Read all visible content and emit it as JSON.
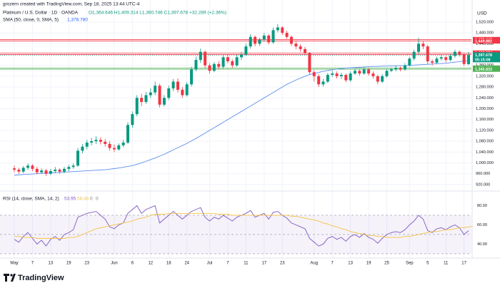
{
  "credit": "grozern created with TradingView.com, Sep 18, 2025 13:44 UTC-4",
  "logo": "TradingView",
  "chart_data": {
    "type": "candlestick",
    "title": "Platinum / U.S. Dollar · 1D · OANDA",
    "ohlc_legend": "O1,364.646 H1,409.314 L1,360.746 C1,397.678 +32.289 (+2.36%)",
    "currency": "USD",
    "up_color": "#089981",
    "down_color": "#f23645",
    "grid": true,
    "categories": [
      "May",
      null,
      null,
      null,
      "7",
      null,
      null,
      null,
      "13",
      null,
      null,
      null,
      "19",
      null,
      null,
      null,
      "23",
      null,
      null,
      null,
      null,
      null,
      "Jun",
      null,
      null,
      null,
      "6",
      null,
      null,
      null,
      "12",
      null,
      null,
      null,
      "18",
      null,
      null,
      null,
      "24",
      null,
      null,
      null,
      null,
      "Jul",
      null,
      null,
      null,
      "7",
      null,
      null,
      null,
      "11",
      null,
      null,
      null,
      "17",
      null,
      null,
      null,
      "23",
      null,
      null,
      null,
      null,
      null,
      null,
      "Aug",
      null,
      null,
      null,
      "7",
      null,
      null,
      null,
      "13",
      null,
      null,
      null,
      "19",
      null,
      null,
      null,
      "25",
      null,
      null,
      null,
      null,
      "Sep",
      null,
      null,
      null,
      "5",
      null,
      null,
      null,
      "11",
      null,
      null,
      null,
      "17",
      null
    ],
    "candles": [
      [
        980,
        990,
        965,
        975
      ],
      [
        975,
        982,
        960,
        968
      ],
      [
        968,
        988,
        962,
        982
      ],
      [
        982,
        998,
        975,
        990
      ],
      [
        990,
        995,
        970,
        978
      ],
      [
        978,
        985,
        958,
        965
      ],
      [
        965,
        980,
        960,
        972
      ],
      [
        972,
        978,
        952,
        960
      ],
      [
        960,
        978,
        955,
        970
      ],
      [
        970,
        985,
        962,
        975
      ],
      [
        975,
        980,
        960,
        968
      ],
      [
        968,
        985,
        962,
        978
      ],
      [
        978,
        992,
        970,
        985
      ],
      [
        985,
        998,
        978,
        990
      ],
      [
        990,
        1055,
        985,
        1045
      ],
      [
        1045,
        1070,
        1035,
        1060
      ],
      [
        1060,
        1085,
        1050,
        1075
      ],
      [
        1075,
        1092,
        1065,
        1080
      ],
      [
        1080,
        1098,
        1070,
        1085
      ],
      [
        1085,
        1095,
        1068,
        1078
      ],
      [
        1078,
        1088,
        1060,
        1070
      ],
      [
        1070,
        1080,
        1045,
        1055
      ],
      [
        1055,
        1068,
        1040,
        1050
      ],
      [
        1050,
        1072,
        1045,
        1065
      ],
      [
        1065,
        1085,
        1058,
        1075
      ],
      [
        1075,
        1150,
        1070,
        1140
      ],
      [
        1140,
        1190,
        1130,
        1180
      ],
      [
        1180,
        1250,
        1172,
        1240
      ],
      [
        1240,
        1255,
        1210,
        1225
      ],
      [
        1225,
        1262,
        1218,
        1250
      ],
      [
        1250,
        1275,
        1240,
        1260
      ],
      [
        1260,
        1300,
        1250,
        1285
      ],
      [
        1285,
        1292,
        1205,
        1215
      ],
      [
        1215,
        1250,
        1208,
        1240
      ],
      [
        1240,
        1285,
        1232,
        1275
      ],
      [
        1275,
        1310,
        1265,
        1300
      ],
      [
        1300,
        1312,
        1260,
        1270
      ],
      [
        1270,
        1280,
        1240,
        1250
      ],
      [
        1250,
        1298,
        1245,
        1290
      ],
      [
        1290,
        1355,
        1282,
        1345
      ],
      [
        1345,
        1392,
        1338,
        1380
      ],
      [
        1380,
        1422,
        1370,
        1410
      ],
      [
        1410,
        1415,
        1350,
        1360
      ],
      [
        1360,
        1368,
        1330,
        1340
      ],
      [
        1340,
        1372,
        1335,
        1365
      ],
      [
        1365,
        1375,
        1345,
        1355
      ],
      [
        1355,
        1398,
        1348,
        1390
      ],
      [
        1390,
        1400,
        1368,
        1375
      ],
      [
        1375,
        1382,
        1350,
        1360
      ],
      [
        1360,
        1398,
        1355,
        1390
      ],
      [
        1390,
        1410,
        1380,
        1400
      ],
      [
        1400,
        1440,
        1395,
        1430
      ],
      [
        1430,
        1475,
        1422,
        1465
      ],
      [
        1465,
        1470,
        1430,
        1440
      ],
      [
        1440,
        1462,
        1432,
        1455
      ],
      [
        1455,
        1480,
        1448,
        1470
      ],
      [
        1470,
        1475,
        1438,
        1445
      ],
      [
        1445,
        1500,
        1440,
        1490
      ],
      [
        1490,
        1512,
        1482,
        1500
      ],
      [
        1500,
        1505,
        1472,
        1480
      ],
      [
        1480,
        1488,
        1458,
        1465
      ],
      [
        1465,
        1470,
        1432,
        1440
      ],
      [
        1440,
        1448,
        1420,
        1430
      ],
      [
        1430,
        1438,
        1410,
        1420
      ],
      [
        1420,
        1428,
        1398,
        1405
      ],
      [
        1405,
        1410,
        1325,
        1335
      ],
      [
        1335,
        1342,
        1300,
        1320
      ],
      [
        1320,
        1328,
        1280,
        1290
      ],
      [
        1290,
        1310,
        1282,
        1300
      ],
      [
        1300,
        1332,
        1295,
        1325
      ],
      [
        1325,
        1340,
        1318,
        1330
      ],
      [
        1330,
        1338,
        1312,
        1320
      ],
      [
        1320,
        1332,
        1310,
        1325
      ],
      [
        1325,
        1330,
        1298,
        1305
      ],
      [
        1305,
        1338,
        1300,
        1330
      ],
      [
        1330,
        1348,
        1325,
        1340
      ],
      [
        1340,
        1345,
        1322,
        1330
      ],
      [
        1330,
        1352,
        1325,
        1345
      ],
      [
        1345,
        1350,
        1322,
        1330
      ],
      [
        1330,
        1338,
        1312,
        1320
      ],
      [
        1320,
        1325,
        1290,
        1300
      ],
      [
        1300,
        1328,
        1295,
        1320
      ],
      [
        1320,
        1346,
        1315,
        1340
      ],
      [
        1340,
        1352,
        1335,
        1345
      ],
      [
        1345,
        1358,
        1338,
        1350
      ],
      [
        1350,
        1356,
        1338,
        1345
      ],
      [
        1345,
        1368,
        1340,
        1360
      ],
      [
        1360,
        1392,
        1355,
        1385
      ],
      [
        1385,
        1418,
        1378,
        1410
      ],
      [
        1410,
        1462,
        1402,
        1440
      ],
      [
        1440,
        1448,
        1420,
        1430
      ],
      [
        1430,
        1435,
        1365,
        1375
      ],
      [
        1375,
        1382,
        1360,
        1370
      ],
      [
        1370,
        1392,
        1365,
        1385
      ],
      [
        1385,
        1398,
        1378,
        1390
      ],
      [
        1390,
        1395,
        1372,
        1380
      ],
      [
        1380,
        1402,
        1375,
        1395
      ],
      [
        1395,
        1418,
        1388,
        1410
      ],
      [
        1410,
        1415,
        1392,
        1400
      ],
      [
        1400,
        1405,
        1358,
        1365
      ],
      [
        1364.646,
        1409.314,
        1360.746,
        1397.678
      ]
    ],
    "sma": {
      "name": "SMA (50, close, 0, SMA, 5)",
      "value_label": "1,378.780",
      "color": "#5b8def",
      "values": [
        955,
        956,
        957,
        958,
        959,
        960,
        961,
        962,
        963,
        964,
        965,
        966,
        967,
        968,
        969,
        970,
        971,
        972,
        973,
        974,
        975,
        977,
        979,
        981,
        984,
        987,
        990,
        995,
        1000,
        1006,
        1012,
        1018,
        1025,
        1032,
        1040,
        1048,
        1056,
        1064,
        1072,
        1081,
        1090,
        1100,
        1110,
        1120,
        1130,
        1140,
        1150,
        1160,
        1170,
        1180,
        1190,
        1200,
        1210,
        1220,
        1230,
        1240,
        1250,
        1260,
        1270,
        1280,
        1290,
        1298,
        1306,
        1313,
        1320,
        1326,
        1330,
        1334,
        1338,
        1341,
        1344,
        1346,
        1348,
        1350,
        1351,
        1352,
        1353,
        1354,
        1355,
        1356,
        1356,
        1357,
        1357,
        1358,
        1358,
        1359,
        1359,
        1360,
        1361,
        1362,
        1363,
        1364,
        1365,
        1366,
        1367,
        1368,
        1370,
        1372,
        1374,
        1376,
        1378.78
      ]
    },
    "ylim": [
      904,
      1575
    ],
    "yticks": [
      {
        "value": 1520,
        "label": "1,520.000"
      },
      {
        "value": 1480,
        "label": "1,480.000"
      },
      {
        "value": 1440,
        "label": "1,440.000"
      },
      {
        "value": 1400,
        "label": "1,400.000"
      },
      {
        "value": 1360,
        "label": "1,360.000"
      },
      {
        "value": 1320,
        "label": "1,320.000"
      },
      {
        "value": 1280,
        "label": "1,280.000"
      },
      {
        "value": 1240,
        "label": "1,240.000"
      },
      {
        "value": 1200,
        "label": "1,200.000"
      },
      {
        "value": 1160,
        "label": "1,160.000"
      },
      {
        "value": 1120,
        "label": "1,120.000"
      },
      {
        "value": 1080,
        "label": "1,080.000"
      },
      {
        "value": 1040,
        "label": "1,040.000"
      },
      {
        "value": 1000,
        "label": "1,000.000"
      },
      {
        "value": 960,
        "label": "960.000"
      },
      {
        "value": 920,
        "label": "920.000"
      }
    ],
    "levels": [
      {
        "value": 1455.448,
        "label": "1,455.448",
        "color": "#f23645"
      },
      {
        "value": 1449.882,
        "label": "1,449.882",
        "color": "#f23645"
      },
      {
        "value": 1405.674,
        "label": "1,405.674",
        "color": "#f23645"
      },
      {
        "value": 1400.113,
        "label": "1,400.113",
        "color": "#f23645"
      },
      {
        "value": 1350.29,
        "label": "1,350.290",
        "color": "#4caf50"
      },
      {
        "value": 1345.833,
        "label": "1,345.833",
        "color": "#4caf50"
      }
    ],
    "last_price": {
      "value": 1397.678,
      "label": "1,397.678",
      "countdown": "05:15:06",
      "color": "#089981"
    },
    "rsi": {
      "name": "RSI (14, close, SMA, 14, 2)",
      "legend_values": [
        "53.95",
        "58.46",
        "0",
        "0"
      ],
      "ylim": [
        27,
        90
      ],
      "yticks": [
        {
          "value": 80,
          "label": "80.00"
        },
        {
          "value": 60,
          "label": "60.00"
        },
        {
          "value": 40,
          "label": "40.00"
        }
      ],
      "bands": [
        70,
        50,
        30
      ],
      "series": [
        {
          "name": "RSI",
          "color": "#7e57c2",
          "values": [
            45,
            42,
            48,
            52,
            46,
            40,
            44,
            38,
            45,
            48,
            44,
            50,
            52,
            55,
            68,
            70,
            72,
            73,
            74,
            70,
            66,
            58,
            56,
            60,
            62,
            72,
            76,
            80,
            72,
            76,
            78,
            80,
            62,
            66,
            70,
            74,
            70,
            66,
            70,
            74,
            76,
            78,
            68,
            64,
            68,
            66,
            70,
            67,
            64,
            68,
            70,
            72,
            75,
            68,
            70,
            72,
            66,
            73,
            74,
            70,
            67,
            62,
            60,
            58,
            56,
            46,
            42,
            38,
            40,
            46,
            48,
            45,
            47,
            43,
            48,
            50,
            47,
            51,
            47,
            45,
            41,
            46,
            50,
            52,
            53,
            52,
            55,
            60,
            64,
            70,
            66,
            54,
            52,
            56,
            57,
            55,
            58,
            60,
            57,
            50,
            53.95
          ]
        },
        {
          "name": "RSI-based MA",
          "color": "#f5c242",
          "values": [
            48,
            48,
            47,
            47,
            47,
            46,
            46,
            46,
            46,
            46,
            46,
            46,
            47,
            47,
            48,
            50,
            52,
            54,
            56,
            57,
            58,
            59,
            60,
            61,
            62,
            63,
            64,
            66,
            67,
            68,
            70,
            71,
            71,
            71,
            72,
            72,
            72,
            72,
            72,
            72,
            72,
            72,
            72,
            72,
            72,
            71,
            71,
            71,
            70,
            70,
            70,
            70,
            70,
            70,
            70,
            70,
            70,
            70,
            70,
            70,
            70,
            69,
            69,
            68,
            67,
            66,
            65,
            64,
            62,
            61,
            59,
            58,
            56,
            55,
            53,
            52,
            51,
            50,
            49,
            49,
            48,
            48,
            47,
            47,
            47,
            47,
            48,
            48,
            49,
            50,
            51,
            52,
            53,
            53,
            54,
            55,
            55,
            56,
            57,
            57,
            58,
            58.46
          ]
        }
      ]
    }
  }
}
